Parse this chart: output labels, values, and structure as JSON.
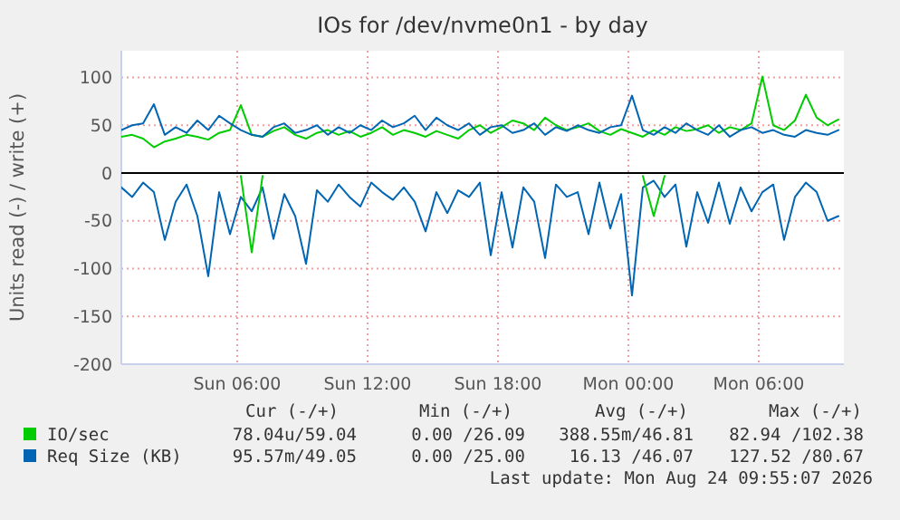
{
  "chart_data": {
    "type": "line",
    "title": "IOs for /dev/nvme0n1 - by day",
    "ylabel": "Units read (-) / write (+)",
    "x": [
      "2026-08-23T00:40",
      "2026-08-23T01:10",
      "2026-08-23T01:40",
      "2026-08-23T02:10",
      "2026-08-23T02:40",
      "2026-08-23T03:10",
      "2026-08-23T03:40",
      "2026-08-23T04:10",
      "2026-08-23T04:40",
      "2026-08-23T05:10",
      "2026-08-23T05:40",
      "2026-08-23T06:10",
      "2026-08-23T06:40",
      "2026-08-23T07:10",
      "2026-08-23T07:40",
      "2026-08-23T08:10",
      "2026-08-23T08:40",
      "2026-08-23T09:10",
      "2026-08-23T09:40",
      "2026-08-23T10:10",
      "2026-08-23T10:40",
      "2026-08-23T11:10",
      "2026-08-23T11:40",
      "2026-08-23T12:10",
      "2026-08-23T12:40",
      "2026-08-23T13:10",
      "2026-08-23T13:40",
      "2026-08-23T14:10",
      "2026-08-23T14:40",
      "2026-08-23T15:10",
      "2026-08-23T15:40",
      "2026-08-23T16:10",
      "2026-08-23T16:40",
      "2026-08-23T17:10",
      "2026-08-23T17:40",
      "2026-08-23T18:10",
      "2026-08-23T18:40",
      "2026-08-23T19:10",
      "2026-08-23T19:40",
      "2026-08-23T20:10",
      "2026-08-23T20:40",
      "2026-08-23T21:10",
      "2026-08-23T21:40",
      "2026-08-23T22:10",
      "2026-08-23T22:40",
      "2026-08-23T23:10",
      "2026-08-23T23:40",
      "2026-08-24T00:10",
      "2026-08-24T00:40",
      "2026-08-24T01:10",
      "2026-08-24T01:40",
      "2026-08-24T02:10",
      "2026-08-24T02:40",
      "2026-08-24T03:10",
      "2026-08-24T03:40",
      "2026-08-24T04:10",
      "2026-08-24T04:40",
      "2026-08-24T05:10",
      "2026-08-24T05:40",
      "2026-08-24T06:10",
      "2026-08-24T06:40",
      "2026-08-24T07:10",
      "2026-08-24T07:40",
      "2026-08-24T08:10",
      "2026-08-24T08:40",
      "2026-08-24T09:10",
      "2026-08-24T09:40"
    ],
    "series": [
      {
        "color": "#0066b3",
        "values": [
          -15,
          -25,
          -10,
          -20,
          -70,
          -30,
          -12,
          -45,
          -108,
          -20,
          -64,
          -25,
          -40,
          -15,
          -69,
          -22,
          -45,
          -95,
          -18,
          -30,
          -12,
          -25,
          -35,
          -10,
          -20,
          -28,
          -15,
          -30,
          -61,
          -20,
          -42,
          -18,
          -25,
          -10,
          -86,
          -20,
          -78,
          -15,
          -30,
          -89,
          -12,
          -25,
          -20,
          -64,
          -10,
          -58,
          -22,
          -128,
          -15,
          -8,
          -25,
          -12,
          -77,
          -20,
          -52,
          -10,
          -53,
          -15,
          -40,
          -20,
          -12,
          -70,
          -25,
          -10,
          -20,
          -50,
          -45
        ]
      },
      {
        "color": "#00cc00",
        "values": [
          null,
          null,
          null,
          null,
          null,
          null,
          null,
          null,
          null,
          null,
          null,
          -3,
          -83,
          -3,
          null,
          null,
          null,
          null,
          null,
          null,
          null,
          null,
          null,
          null,
          null,
          null,
          null,
          null,
          null,
          null,
          null,
          null,
          null,
          null,
          null,
          null,
          null,
          null,
          null,
          null,
          null,
          null,
          null,
          null,
          null,
          null,
          null,
          null,
          -3,
          -45,
          -3,
          null,
          null,
          null,
          null,
          null,
          null,
          null,
          null,
          null,
          null,
          null,
          null,
          null,
          null,
          null,
          null
        ]
      },
      {
        "name": "IO/sec",
        "color": "#00cc00",
        "values": [
          38,
          40,
          36,
          27,
          33,
          36,
          40,
          38,
          35,
          42,
          45,
          71,
          40,
          38,
          44,
          48,
          40,
          36,
          42,
          45,
          40,
          44,
          38,
          42,
          48,
          40,
          45,
          42,
          38,
          44,
          40,
          36,
          45,
          50,
          42,
          48,
          55,
          52,
          45,
          58,
          50,
          45,
          48,
          52,
          44,
          40,
          46,
          42,
          38,
          45,
          40,
          48,
          44,
          46,
          50,
          42,
          48,
          45,
          52,
          101,
          50,
          45,
          55,
          82,
          58,
          50,
          56
        ]
      },
      {
        "name": "Req Size (KB)",
        "color": "#0066b3",
        "values": [
          45,
          50,
          52,
          72,
          40,
          48,
          42,
          55,
          45,
          60,
          52,
          45,
          40,
          38,
          48,
          52,
          42,
          45,
          50,
          40,
          48,
          42,
          50,
          45,
          55,
          48,
          52,
          60,
          45,
          58,
          50,
          45,
          52,
          40,
          48,
          50,
          42,
          45,
          52,
          40,
          48,
          44,
          50,
          45,
          42,
          48,
          50,
          81,
          45,
          40,
          48,
          42,
          52,
          45,
          40,
          50,
          38,
          45,
          48,
          42,
          45,
          40,
          38,
          45,
          42,
          40,
          45
        ]
      }
    ],
    "xlim": [
      "2026-08-23T00:40",
      "2026-08-24T09:55"
    ],
    "xticks": [
      {
        "value": "2026-08-23T06:00",
        "label": "Sun 06:00"
      },
      {
        "value": "2026-08-23T12:00",
        "label": "Sun 12:00"
      },
      {
        "value": "2026-08-23T18:00",
        "label": "Sun 18:00"
      },
      {
        "value": "2026-08-24T00:00",
        "label": "Mon 00:00"
      },
      {
        "value": "2026-08-24T06:00",
        "label": "Mon 06:00"
      }
    ],
    "ylim": [
      -200,
      128
    ],
    "yticks": [
      -200,
      -150,
      -100,
      -50,
      0,
      50,
      100
    ],
    "ref_lines": [
      {
        "axis": "y",
        "value": 0,
        "color": "#000000"
      }
    ],
    "grid": true,
    "legend": "bottom",
    "line_style": "solid",
    "marker": "none",
    "annotations": [
      "Cur (-/+)",
      "Min (-/+)",
      "Avg (-/+)",
      "Max (-/+)",
      "78.04u/59.04",
      "0.00 /26.09",
      "388.55m/46.81",
      "82.94 /102.38",
      "95.57m/49.05",
      "0.00 /25.00",
      "16.13 /46.07",
      "127.52 /80.67",
      "Last update: Mon Aug 24 09:55:07 2026"
    ]
  }
}
